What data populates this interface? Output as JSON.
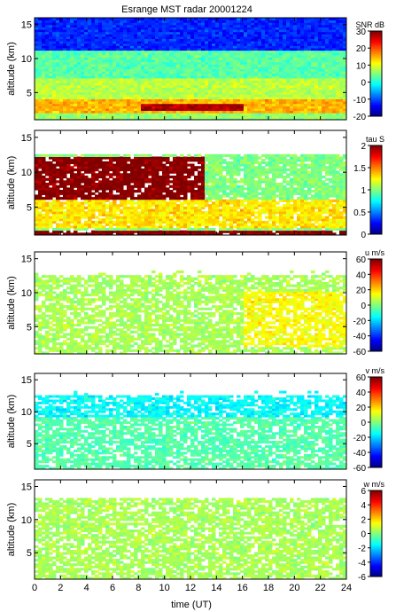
{
  "chart_data": {
    "title": "Esrange MST radar 20001224",
    "xlabel": "time (UT)",
    "xlim": [
      0,
      24
    ],
    "xticks": [
      0,
      2,
      4,
      6,
      8,
      10,
      12,
      14,
      16,
      18,
      20,
      22,
      24
    ],
    "colormap": "jet",
    "panels": [
      {
        "type": "heatmap",
        "variable": "SNR",
        "ylabel": "altitude (km)",
        "ylim": [
          1,
          16
        ],
        "yticks": [
          5,
          10,
          15
        ],
        "colorbar_label": "SNR dB",
        "clim": [
          -20,
          30
        ],
        "colorbar_ticks": [
          -20,
          -10,
          0,
          10,
          20,
          30
        ],
        "features": [
          {
            "altitude_km": [
              11,
              16
            ],
            "approx_value": -12
          },
          {
            "altitude_km": [
              7,
              11
            ],
            "approx_value": 3
          },
          {
            "altitude_km": [
              4,
              7
            ],
            "approx_value": 8
          },
          {
            "altitude_km": [
              2,
              4
            ],
            "approx_value": 15
          },
          {
            "altitude_km": [
              2.2,
              3.2
            ],
            "time_ut": [
              8,
              16
            ],
            "approx_value": 28
          }
        ]
      },
      {
        "type": "heatmap",
        "variable": "tau",
        "ylabel": "altitude (km)",
        "ylim": [
          1,
          16
        ],
        "yticks": [
          5,
          10,
          15
        ],
        "colorbar_label": "tau S",
        "clim": [
          0,
          2
        ],
        "colorbar_ticks": [
          0,
          0.5,
          1,
          1.5,
          2
        ],
        "features": [
          {
            "altitude_km": [
              6,
              12
            ],
            "time_ut": [
              0,
              13
            ],
            "approx_value": 2.0
          },
          {
            "altitude_km": [
              2,
              6
            ],
            "approx_value": 1.3
          },
          {
            "altitude_km": [
              1,
              1.6
            ],
            "approx_value": 2.0
          }
        ]
      },
      {
        "type": "heatmap",
        "variable": "u",
        "ylabel": "altitude (km)",
        "ylim": [
          1,
          16
        ],
        "yticks": [
          5,
          10,
          15
        ],
        "colorbar_label": "u m/s",
        "clim": [
          -60,
          60
        ],
        "colorbar_ticks": [
          -60,
          -40,
          -20,
          0,
          20,
          40,
          60
        ],
        "features": [
          {
            "altitude_km": [
              1,
              12
            ],
            "time_ut": [
              0,
              16
            ],
            "approx_value": 5
          },
          {
            "altitude_km": [
              2,
              10
            ],
            "time_ut": [
              16,
              24
            ],
            "approx_value": 15
          }
        ]
      },
      {
        "type": "heatmap",
        "variable": "v",
        "ylabel": "altitude (km)",
        "ylim": [
          1,
          16
        ],
        "yticks": [
          5,
          10,
          15
        ],
        "colorbar_label": "v m/s",
        "clim": [
          -60,
          60
        ],
        "colorbar_ticks": [
          -60,
          -40,
          -20,
          0,
          20,
          40,
          60
        ],
        "features": [
          {
            "altitude_km": [
              9,
              12
            ],
            "approx_value": -15
          },
          {
            "altitude_km": [
              1,
              9
            ],
            "approx_value": -5
          }
        ]
      },
      {
        "type": "heatmap",
        "variable": "w",
        "ylabel": "altitude (km)",
        "ylim": [
          1,
          16
        ],
        "yticks": [
          5,
          10,
          15
        ],
        "colorbar_label": "w m/s",
        "clim": [
          -6,
          6
        ],
        "colorbar_ticks": [
          -6,
          -4,
          -2,
          0,
          2,
          4,
          6
        ],
        "features": [
          {
            "altitude_km": [
              1,
              13
            ],
            "approx_value": 0.5
          }
        ]
      }
    ]
  }
}
